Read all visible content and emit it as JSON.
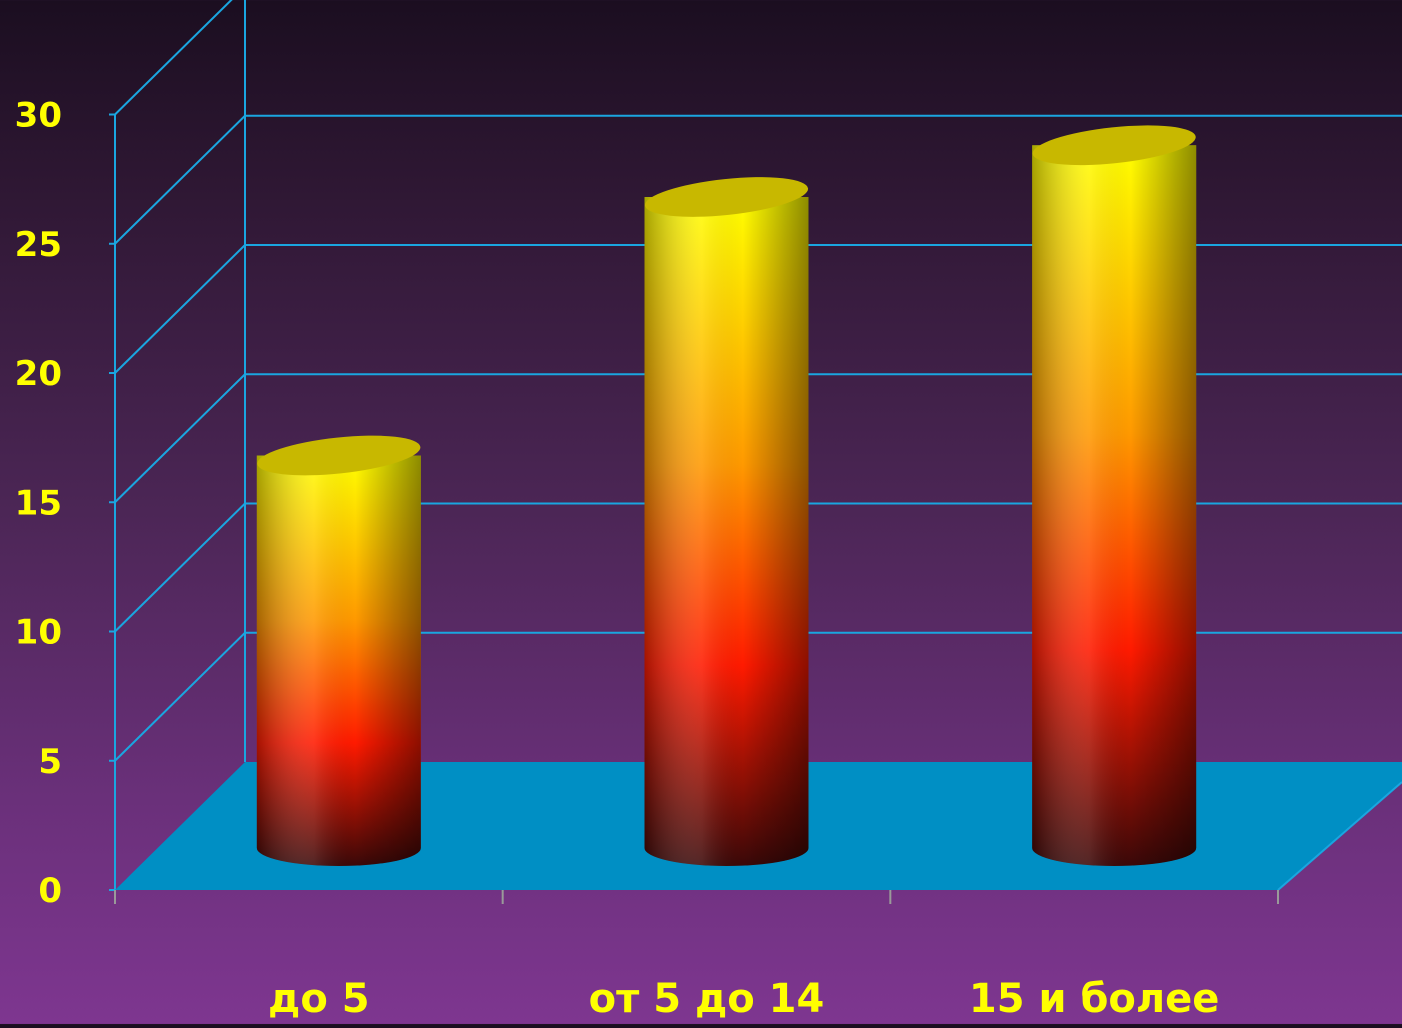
{
  "chart_data": {
    "type": "bar",
    "style": "3d-cylinder",
    "categories": [
      "до 5",
      "от 5 до 14",
      "15 и более"
    ],
    "values": [
      16.5,
      26.5,
      28.5
    ],
    "ylim": [
      0,
      30
    ],
    "yticks": [
      "0",
      "5",
      "10",
      "15",
      "20",
      "25",
      "30"
    ],
    "grid": true,
    "legend": "none",
    "colors": {
      "floor": "#008fc4",
      "gridlines": "#1aa6e0",
      "text": "#ffff00",
      "bar_top": "#ffff00",
      "bar_mid": "#ff1a00",
      "bar_bottom": "#3a0808",
      "bar_cap": "#c8b800"
    }
  }
}
